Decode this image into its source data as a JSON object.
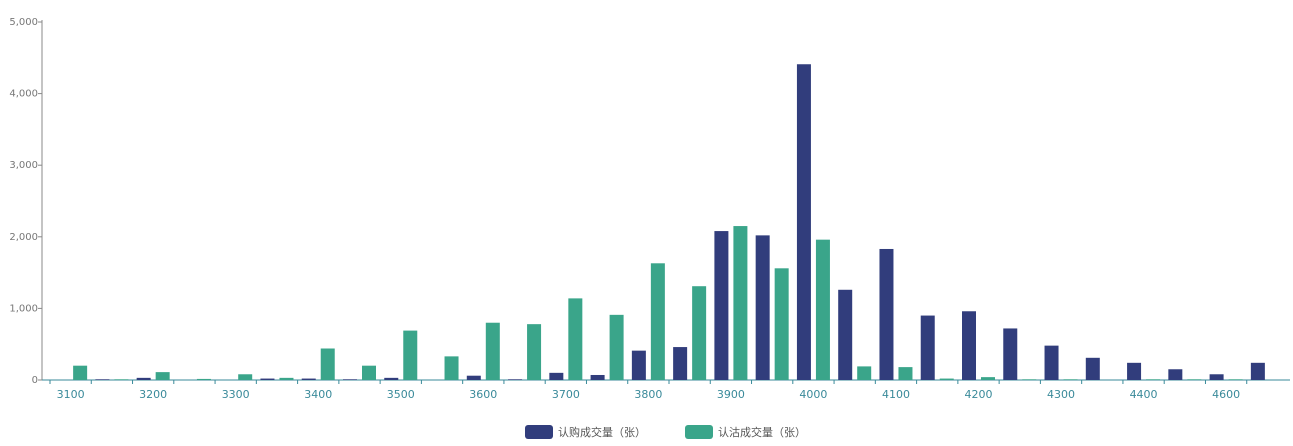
{
  "chart_data": {
    "type": "bar",
    "categories": [
      "3100",
      null,
      "3200",
      null,
      "3300",
      null,
      "3400",
      null,
      "3500",
      null,
      "3600",
      null,
      "3700",
      null,
      "3800",
      null,
      "3900",
      null,
      "4000",
      null,
      "4100",
      null,
      "4200",
      null,
      "4300",
      null,
      "4400",
      null,
      "4600",
      null
    ],
    "series": [
      {
        "name": "认购成交量（张）",
        "color": "#313d7c",
        "values": [
          0,
          10,
          30,
          0,
          0,
          20,
          20,
          10,
          30,
          0,
          60,
          10,
          100,
          70,
          410,
          460,
          2080,
          2020,
          4410,
          1260,
          1830,
          900,
          960,
          720,
          480,
          310,
          240,
          150,
          80,
          240
        ]
      },
      {
        "name": "认沽成交量（张）",
        "color": "#3aa58a",
        "values": [
          200,
          10,
          110,
          15,
          80,
          30,
          440,
          200,
          690,
          330,
          800,
          780,
          1140,
          910,
          1630,
          1310,
          2150,
          1560,
          1960,
          190,
          180,
          20,
          40,
          10,
          10,
          0,
          10,
          10,
          10,
          0
        ]
      }
    ],
    "ylim": [
      0,
      5000
    ],
    "yticks": [
      0,
      {
        "value": 1000,
        "label": "1,000"
      },
      {
        "value": 2000,
        "label": "2,000"
      },
      {
        "value": 3000,
        "label": "3,000"
      },
      {
        "value": 4000,
        "label": "4,000"
      },
      {
        "value": 5000,
        "label": "5,000"
      }
    ],
    "grid": false,
    "legend": "bottom"
  }
}
